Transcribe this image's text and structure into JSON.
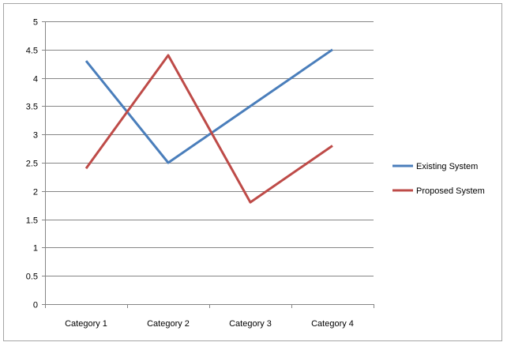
{
  "chart_data": {
    "type": "line",
    "title": "",
    "xlabel": "",
    "ylabel": "",
    "categories": [
      "Category 1",
      "Category 2",
      "Category 3",
      "Category 4"
    ],
    "ylim": [
      0,
      5
    ],
    "yticks": [
      "0",
      "0.5",
      "1",
      "1.5",
      "2",
      "2.5",
      "3",
      "3.5",
      "4",
      "4.5",
      "5"
    ],
    "grid": true,
    "legend": "right",
    "series": [
      {
        "name": "Existing System",
        "color": "#4a7ebb",
        "values": [
          4.3,
          2.5,
          3.5,
          4.5
        ]
      },
      {
        "name": "Proposed System",
        "color": "#be4b48",
        "values": [
          2.4,
          4.4,
          1.8,
          2.8
        ]
      }
    ]
  }
}
